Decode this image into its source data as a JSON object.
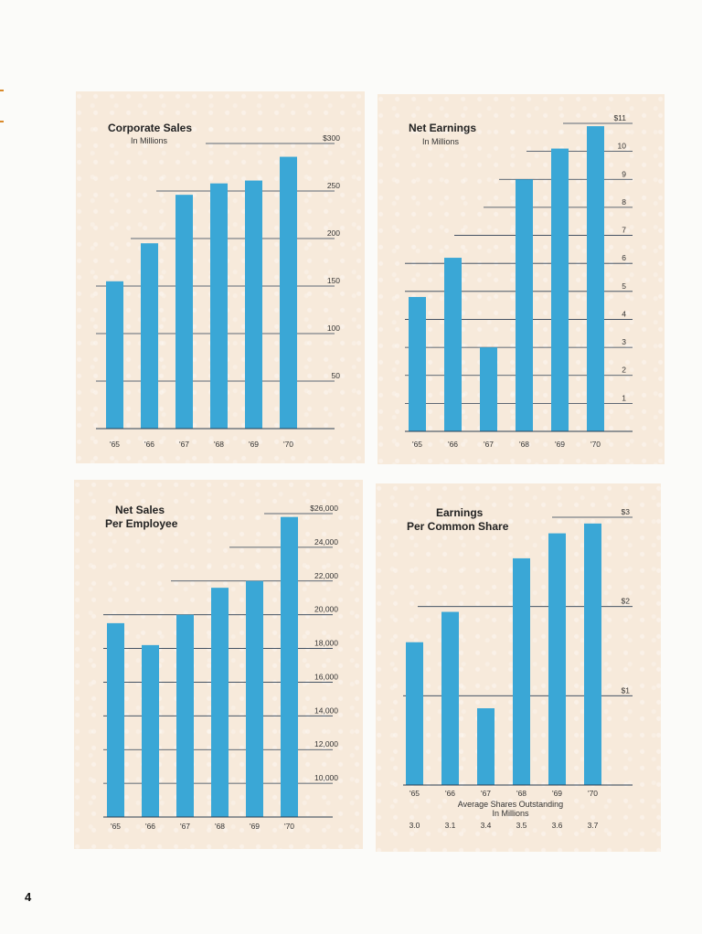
{
  "page": {
    "page_number": "4",
    "colors": {
      "bar": "#3aa7d6",
      "panel": "#f7eadb",
      "rule": "#2b3d52"
    }
  },
  "chart_data": [
    {
      "type": "bar",
      "title": "Corporate Sales",
      "subtitle": "In Millions",
      "categories": [
        "'65",
        "'66",
        "'67",
        "'68",
        "'69",
        "'70"
      ],
      "values": [
        155,
        195,
        246,
        258,
        261,
        286
      ],
      "ylim": [
        0,
        300
      ],
      "yticks": [
        50,
        100,
        150,
        200,
        250,
        300
      ],
      "ytick_labels": [
        "50",
        "100",
        "150",
        "200",
        "250",
        "$300"
      ],
      "grid": true
    },
    {
      "type": "bar",
      "title": "Net Earnings",
      "subtitle": "In Millions",
      "categories": [
        "'65",
        "'66",
        "'67",
        "'68",
        "'69",
        "'70"
      ],
      "values": [
        4.8,
        6.2,
        3.0,
        9.0,
        10.1,
        10.9
      ],
      "ylim": [
        0,
        11
      ],
      "yticks": [
        1,
        2,
        3,
        4,
        5,
        6,
        7,
        8,
        9,
        10,
        11
      ],
      "ytick_labels": [
        "1",
        "2",
        "3",
        "4",
        "5",
        "6",
        "7",
        "8",
        "9",
        "10",
        "$11"
      ],
      "grid": true
    },
    {
      "type": "bar",
      "title": "Net Sales Per Employee",
      "title_lines": [
        "Net Sales",
        "Per Employee"
      ],
      "categories": [
        "'65",
        "'66",
        "'67",
        "'68",
        "'69",
        "'70"
      ],
      "values": [
        19500,
        18200,
        20000,
        21600,
        22000,
        25800
      ],
      "ylim": [
        8000,
        26000
      ],
      "yticks": [
        10000,
        12000,
        14000,
        16000,
        18000,
        20000,
        22000,
        24000,
        26000
      ],
      "ytick_labels": [
        "10,000",
        "12,000",
        "14,000",
        "16,000",
        "18,000",
        "20,000",
        "22,000",
        "24,000",
        "$26,000"
      ],
      "grid": true
    },
    {
      "type": "bar",
      "title": "Earnings Per Common Share",
      "title_lines": [
        "Earnings",
        "Per Common Share"
      ],
      "categories": [
        "'65",
        "'66",
        "'67",
        "'68",
        "'69",
        "'70"
      ],
      "values": [
        1.6,
        1.94,
        0.86,
        2.54,
        2.82,
        2.93
      ],
      "ylim": [
        0,
        3
      ],
      "yticks": [
        1,
        2,
        3
      ],
      "ytick_labels": [
        "$1",
        "$2",
        "$3"
      ],
      "grid": true,
      "footnote_lines": [
        "Average Shares Outstanding",
        "In Millions"
      ],
      "secondary_labels": [
        "3.0",
        "3.1",
        "3.4",
        "3.5",
        "3.6",
        "3.7"
      ]
    }
  ]
}
